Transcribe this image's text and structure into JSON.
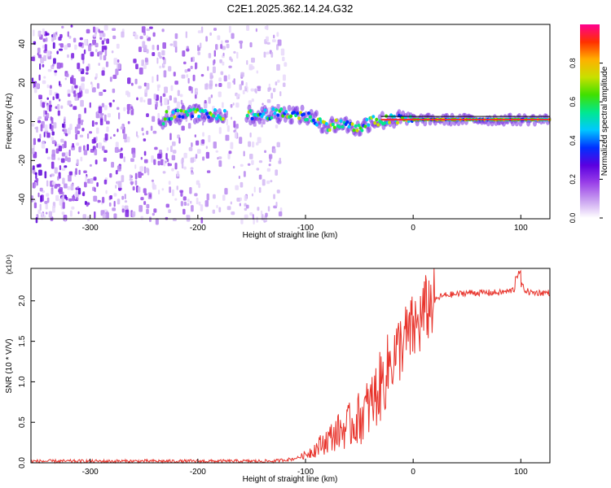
{
  "title": "C2E1.2025.362.14.24.G32",
  "chart_data": [
    {
      "type": "heatmap",
      "xlabel": "Height of straight line (km)",
      "ylabel": "Frequency (Hz)",
      "xlim": [
        -355,
        127
      ],
      "ylim": [
        -50,
        50
      ],
      "x_ticks": [
        -300,
        -200,
        -100,
        0,
        100
      ],
      "y_ticks": [
        40,
        20,
        0,
        -20,
        -40
      ],
      "colorbar": {
        "label": "Normalized spectral amplitude",
        "range": [
          0,
          1
        ],
        "ticks": [
          "0.0",
          "0.2",
          "0.4",
          "0.6",
          "0.8"
        ],
        "colors": [
          "#ffffff",
          "#c9a0f0",
          "#9a40e8",
          "#5a00e0",
          "#0030ff",
          "#00c8ff",
          "#00e890",
          "#40e000",
          "#c8e000",
          "#ffb000",
          "#ff3000",
          "#ff0090"
        ]
      },
      "ridge": [
        [
          -230,
          3
        ],
        [
          -200,
          4
        ],
        [
          -160,
          3
        ],
        [
          -130,
          4
        ],
        [
          -110,
          4
        ],
        [
          -95,
          2
        ],
        [
          -80,
          -2
        ],
        [
          -65,
          -1
        ],
        [
          -50,
          -4
        ],
        [
          -40,
          0
        ],
        [
          -20,
          1
        ],
        [
          0,
          1
        ],
        [
          50,
          1
        ],
        [
          100,
          1
        ],
        [
          127,
          1
        ]
      ],
      "noise_region": [
        -355,
        -120
      ]
    },
    {
      "type": "line",
      "xlabel": "Height of straight line (km)",
      "ylabel": "SNR (10 * V/V)",
      "y_multiplier": "(x10⁴)",
      "xlim": [
        -355,
        127
      ],
      "ylim": [
        0,
        2.4
      ],
      "x_ticks": [
        -300,
        -200,
        -100,
        0,
        100
      ],
      "y_ticks": [
        "0.0",
        "0.5",
        "1.0",
        "1.5",
        "2.0"
      ],
      "color": "#e8342c",
      "series": [
        {
          "x": [
            -355,
            -300,
            -200,
            -130,
            -110,
            -100,
            -90,
            -80,
            -70,
            -60,
            -50,
            -40,
            -30,
            -25,
            -20,
            -15,
            -10,
            -5,
            0,
            5,
            10,
            15,
            20,
            25,
            30,
            40,
            50,
            60,
            70,
            80,
            90,
            95,
            100,
            105,
            110,
            127
          ],
          "y": [
            0.02,
            0.02,
            0.02,
            0.02,
            0.05,
            0.1,
            0.18,
            0.28,
            0.38,
            0.45,
            0.55,
            0.7,
            0.95,
            1.1,
            1.3,
            1.35,
            1.5,
            1.55,
            1.65,
            1.7,
            1.85,
            1.95,
            2.0,
            2.05,
            2.07,
            2.08,
            2.1,
            2.1,
            2.1,
            2.1,
            2.12,
            2.15,
            2.2,
            2.12,
            2.1,
            2.1
          ]
        }
      ]
    }
  ]
}
